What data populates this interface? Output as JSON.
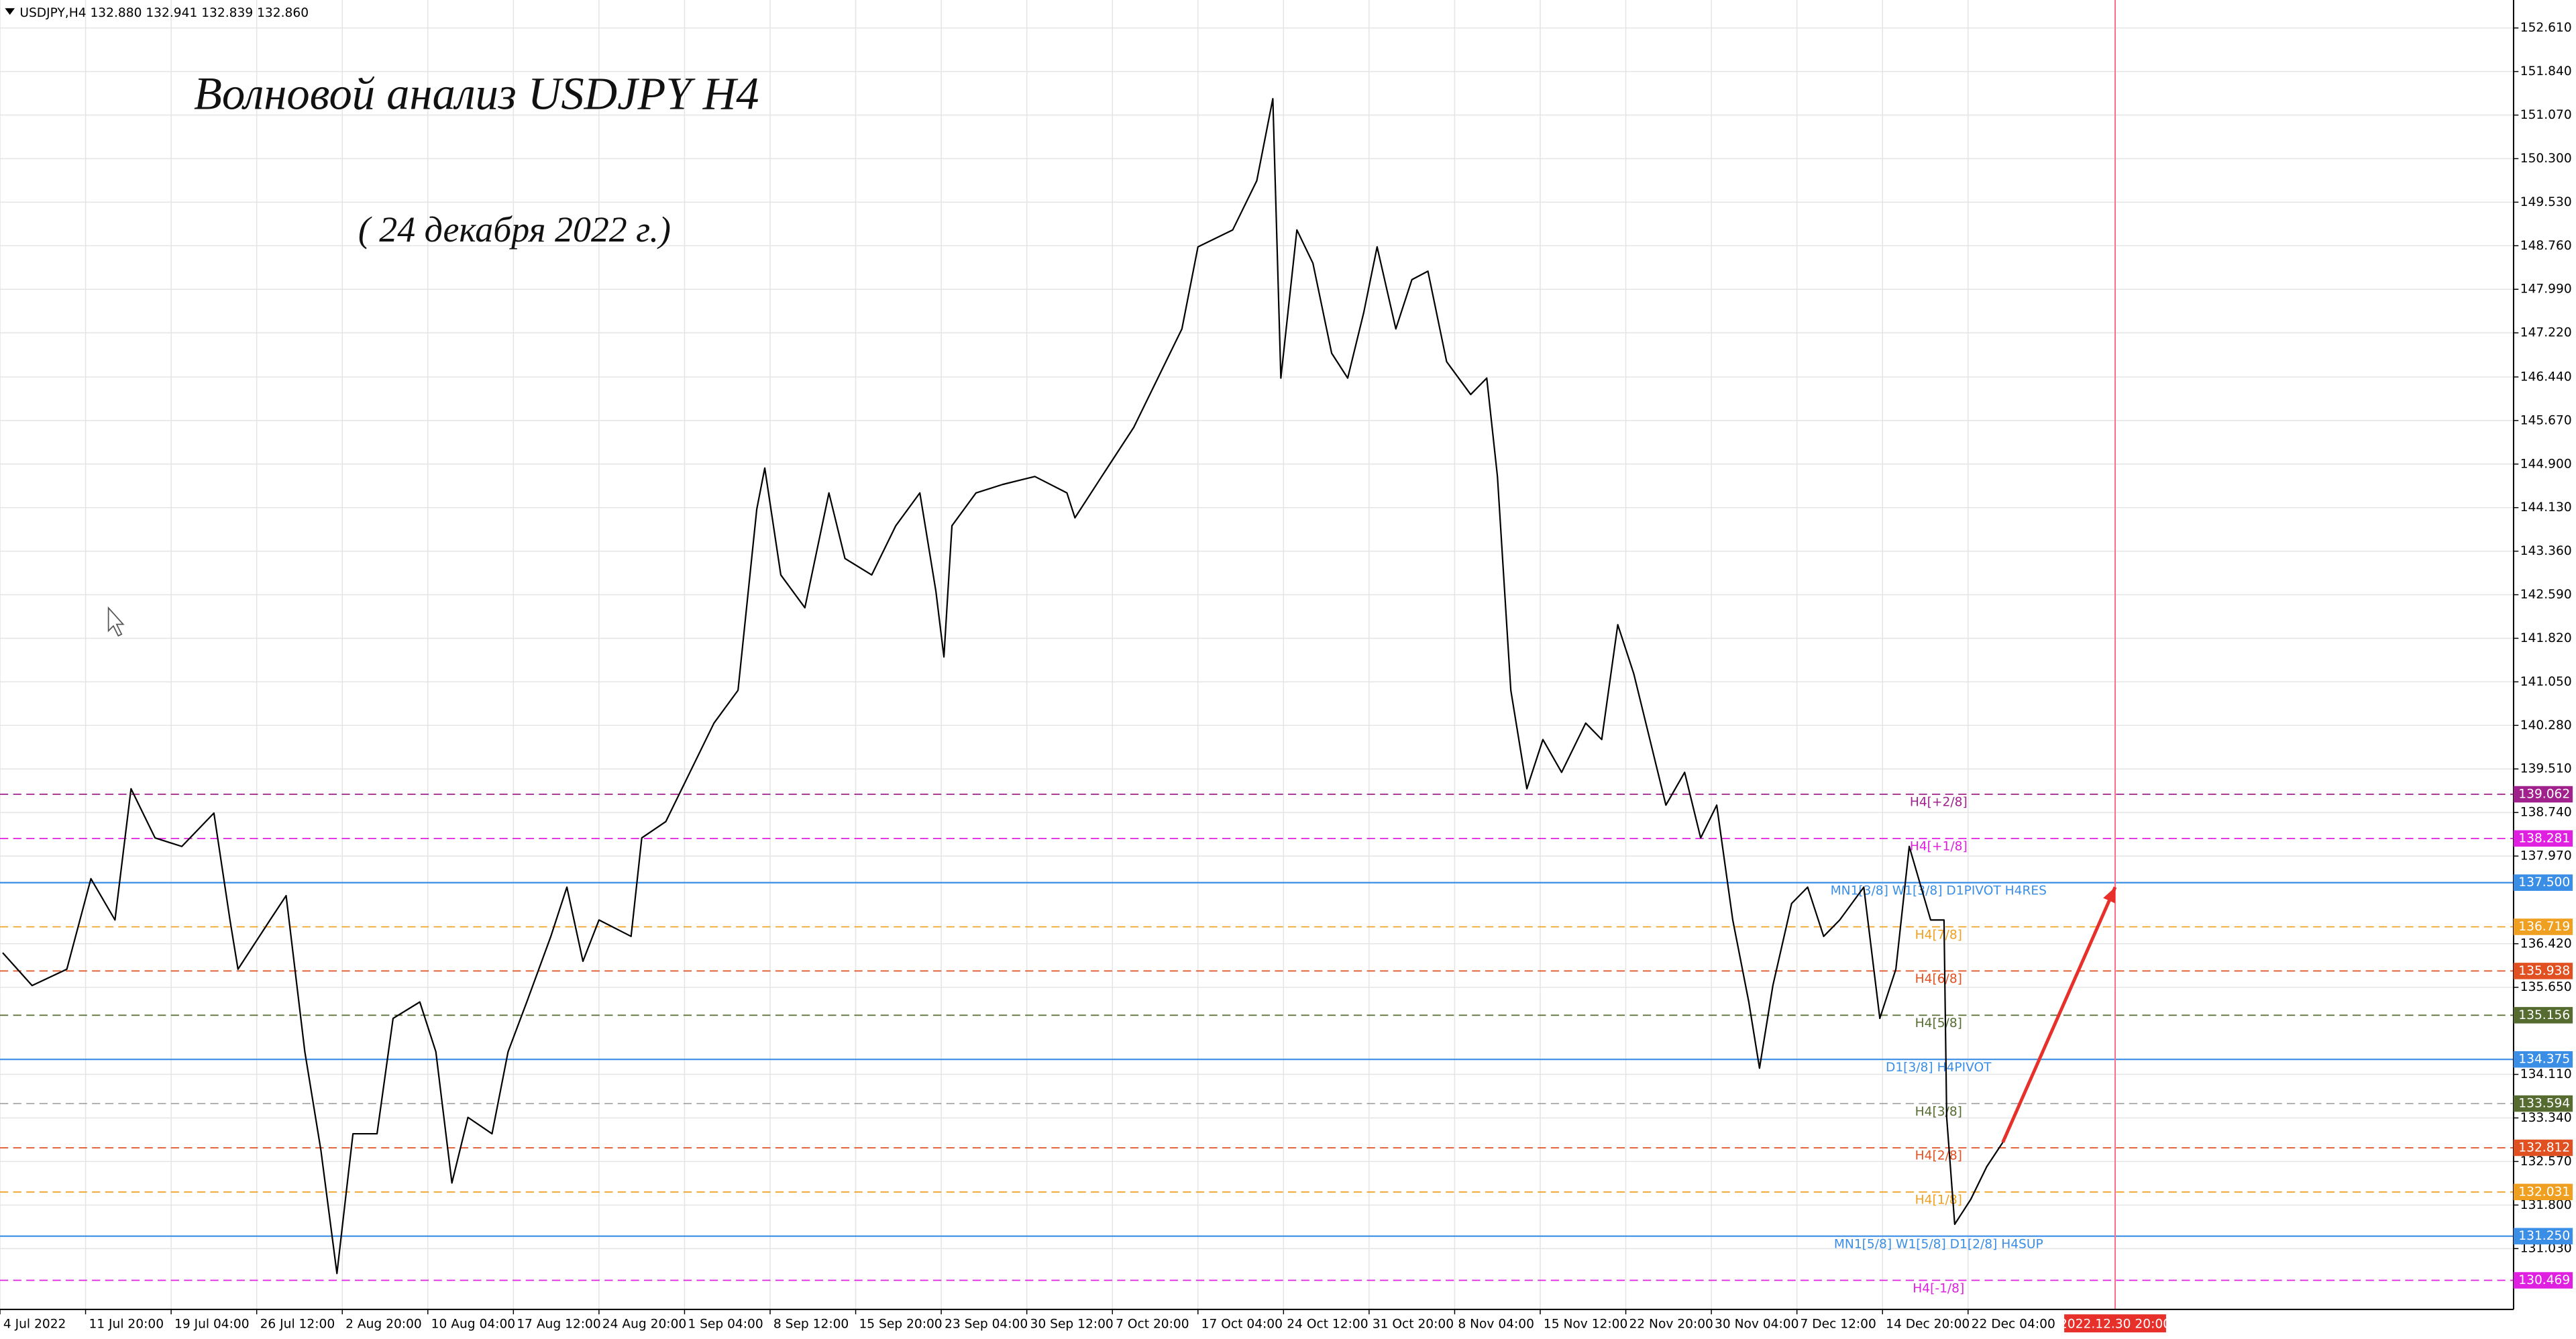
{
  "chart_data": {
    "type": "line",
    "symbol_header": "USDJPY,H4  132.880 132.941 132.839 132.860",
    "title": "Волновой анализ USDJPY H4",
    "subtitle": "( 24 декабря 2022 г.)",
    "color": "#000000",
    "grid": true,
    "xlim": [
      0,
      940
    ],
    "ylim": [
      129.955,
      153.104
    ],
    "x": [
      1,
      12,
      25,
      34,
      43,
      49,
      58,
      68,
      80,
      86,
      89,
      101,
      107,
      114,
      120,
      126,
      132,
      141,
      147,
      157,
      163,
      169,
      175,
      184,
      190,
      197,
      206,
      212,
      218,
      224,
      236,
      240,
      249,
      258,
      267,
      276,
      283,
      286,
      292,
      301,
      310,
      316,
      326,
      335,
      344,
      350,
      353,
      356,
      365,
      375,
      387,
      399,
      402,
      412,
      424,
      433,
      442,
      448,
      461,
      470,
      476,
      479,
      485,
      491,
      498,
      504,
      510,
      515,
      522,
      528,
      534,
      541,
      550,
      556,
      560,
      565,
      571,
      577,
      584,
      593,
      599,
      605,
      611,
      617,
      623,
      630,
      636,
      642,
      648,
      654,
      658,
      663,
      670,
      676,
      682,
      688,
      697,
      703,
      709,
      714,
      722,
      727,
      728,
      731,
      737,
      743,
      749
    ],
    "values": [
      136.26,
      135.68,
      135.97,
      137.57,
      136.84,
      139.16,
      138.29,
      138.14,
      138.73,
      136.84,
      135.97,
      136.84,
      137.27,
      134.51,
      132.77,
      130.59,
      133.06,
      133.06,
      135.1,
      135.39,
      134.51,
      132.19,
      133.35,
      133.06,
      134.51,
      135.39,
      136.55,
      137.42,
      136.11,
      136.84,
      136.55,
      138.29,
      138.58,
      139.45,
      140.32,
      140.9,
      144.1,
      144.83,
      142.94,
      142.36,
      144.39,
      143.23,
      142.94,
      143.81,
      144.39,
      142.65,
      141.49,
      143.81,
      144.39,
      144.54,
      144.68,
      144.39,
      143.95,
      144.68,
      145.55,
      146.42,
      147.29,
      148.74,
      149.04,
      149.91,
      151.36,
      146.42,
      149.04,
      148.45,
      146.86,
      146.42,
      147.58,
      148.74,
      147.29,
      148.16,
      148.31,
      146.71,
      146.13,
      146.42,
      144.68,
      140.9,
      139.16,
      140.03,
      139.45,
      140.32,
      140.03,
      142.06,
      141.19,
      140.03,
      138.87,
      139.45,
      138.29,
      138.87,
      136.84,
      135.39,
      134.22,
      135.68,
      137.13,
      137.42,
      136.55,
      136.84,
      137.42,
      135.1,
      135.97,
      138.14,
      136.84,
      136.84,
      133.35,
      131.46,
      131.9,
      132.48,
      132.91
    ],
    "yticks": [
      {
        "value": 152.61,
        "label": "152.610"
      },
      {
        "value": 151.84,
        "label": "151.840"
      },
      {
        "value": 151.07,
        "label": "151.070"
      },
      {
        "value": 150.3,
        "label": "150.300"
      },
      {
        "value": 149.53,
        "label": "149.530"
      },
      {
        "value": 148.76,
        "label": "148.760"
      },
      {
        "value": 147.99,
        "label": "147.990"
      },
      {
        "value": 147.22,
        "label": "147.220"
      },
      {
        "value": 146.44,
        "label": "146.440"
      },
      {
        "value": 145.67,
        "label": "145.670"
      },
      {
        "value": 144.9,
        "label": "144.900"
      },
      {
        "value": 144.13,
        "label": "144.130"
      },
      {
        "value": 143.36,
        "label": "143.360"
      },
      {
        "value": 142.59,
        "label": "142.590"
      },
      {
        "value": 141.82,
        "label": "141.820"
      },
      {
        "value": 141.05,
        "label": "141.050"
      },
      {
        "value": 140.28,
        "label": "140.280"
      },
      {
        "value": 139.51,
        "label": "139.510"
      },
      {
        "value": 138.74,
        "label": "138.740"
      },
      {
        "value": 137.97,
        "label": "137.970"
      },
      {
        "value": 136.42,
        "label": "136.420"
      },
      {
        "value": 135.65,
        "label": "135.650"
      },
      {
        "value": 134.11,
        "label": "134.110"
      },
      {
        "value": 133.34,
        "label": "133.340"
      },
      {
        "value": 132.57,
        "label": "132.570"
      },
      {
        "value": 131.8,
        "label": "131.800"
      },
      {
        "value": 131.03,
        "label": "131.030"
      }
    ],
    "xticks": [
      {
        "value": 0,
        "label": "4 Jul 2022"
      },
      {
        "value": 32,
        "label": "11 Jul 20:00"
      },
      {
        "value": 64,
        "label": "19 Jul 04:00"
      },
      {
        "value": 96,
        "label": "26 Jul 12:00"
      },
      {
        "value": 128,
        "label": "2 Aug 20:00"
      },
      {
        "value": 160,
        "label": "10 Aug 04:00"
      },
      {
        "value": 192,
        "label": "17 Aug 12:00"
      },
      {
        "value": 224,
        "label": "24 Aug 20:00"
      },
      {
        "value": 256,
        "label": "1 Sep 04:00"
      },
      {
        "value": 288,
        "label": "8 Sep 12:00"
      },
      {
        "value": 320,
        "label": "15 Sep 20:00"
      },
      {
        "value": 352,
        "label": "23 Sep 04:00"
      },
      {
        "value": 384,
        "label": "30 Sep 12:00"
      },
      {
        "value": 416,
        "label": "7 Oct 20:00"
      },
      {
        "value": 448,
        "label": "17 Oct 04:00"
      },
      {
        "value": 480,
        "label": "24 Oct 12:00"
      },
      {
        "value": 512,
        "label": "31 Oct 20:00"
      },
      {
        "value": 544,
        "label": "8 Nov 04:00"
      },
      {
        "value": 576,
        "label": "15 Nov 12:00"
      },
      {
        "value": 608,
        "label": "22 Nov 20:00"
      },
      {
        "value": 640,
        "label": "30 Nov 04:00"
      },
      {
        "value": 672,
        "label": "7 Dec 12:00"
      },
      {
        "value": 704,
        "label": "14 Dec 20:00"
      },
      {
        "value": 736,
        "label": "22 Dec 04:00"
      }
    ],
    "vertical_line": {
      "value": 791,
      "label": "2022.12.30 20:00",
      "color": "#ff6a8a"
    },
    "levels": [
      {
        "value": 139.062,
        "label": "H4[+2/8]",
        "color": "#a0208c",
        "style": "dashed"
      },
      {
        "value": 138.281,
        "label": "H4[+1/8]",
        "color": "#e020e0",
        "style": "dashed"
      },
      {
        "value": 137.5,
        "value_label": "137.500",
        "label": "MN1[3/8] W1[3/8] D1PIVOT H4RES",
        "color": "#3a8ee6",
        "style": "solid"
      },
      {
        "value": 136.719,
        "label": "H4[7/8]",
        "color": "#f0a020",
        "style": "dashed"
      },
      {
        "value": 135.938,
        "label": "H4[6/8]",
        "color": "#e05020",
        "style": "dashed"
      },
      {
        "value": 135.156,
        "label": "H4[5/8]",
        "color": "#556b2f",
        "style": "dashed"
      },
      {
        "value": 134.375,
        "label": "D1[3/8] H4PIVOT",
        "color": "#3a8ee6",
        "style": "solid"
      },
      {
        "value": 133.594,
        "label": "H4[3/8]",
        "color": "#556b2f",
        "line_color": "#a0a0a0",
        "style": "dashed"
      },
      {
        "value": 132.812,
        "label": "H4[2/8]",
        "color": "#e05020",
        "style": "dashed"
      },
      {
        "value": 132.031,
        "label": "H4[1/8]",
        "color": "#f0a020",
        "style": "dashed"
      },
      {
        "value": 131.25,
        "value_label": "131.250",
        "label": "MN1[5/8] W1[5/8] D1[2/8] H4SUP",
        "color": "#3a8ee6",
        "style": "solid"
      },
      {
        "value": 130.469,
        "label": "H4[-1/8]",
        "color": "#e020e0",
        "style": "dashed"
      }
    ],
    "forecast_arrow": {
      "from": [
        749,
        132.91
      ],
      "to": [
        791,
        137.42
      ],
      "color": "#e8302a"
    }
  }
}
